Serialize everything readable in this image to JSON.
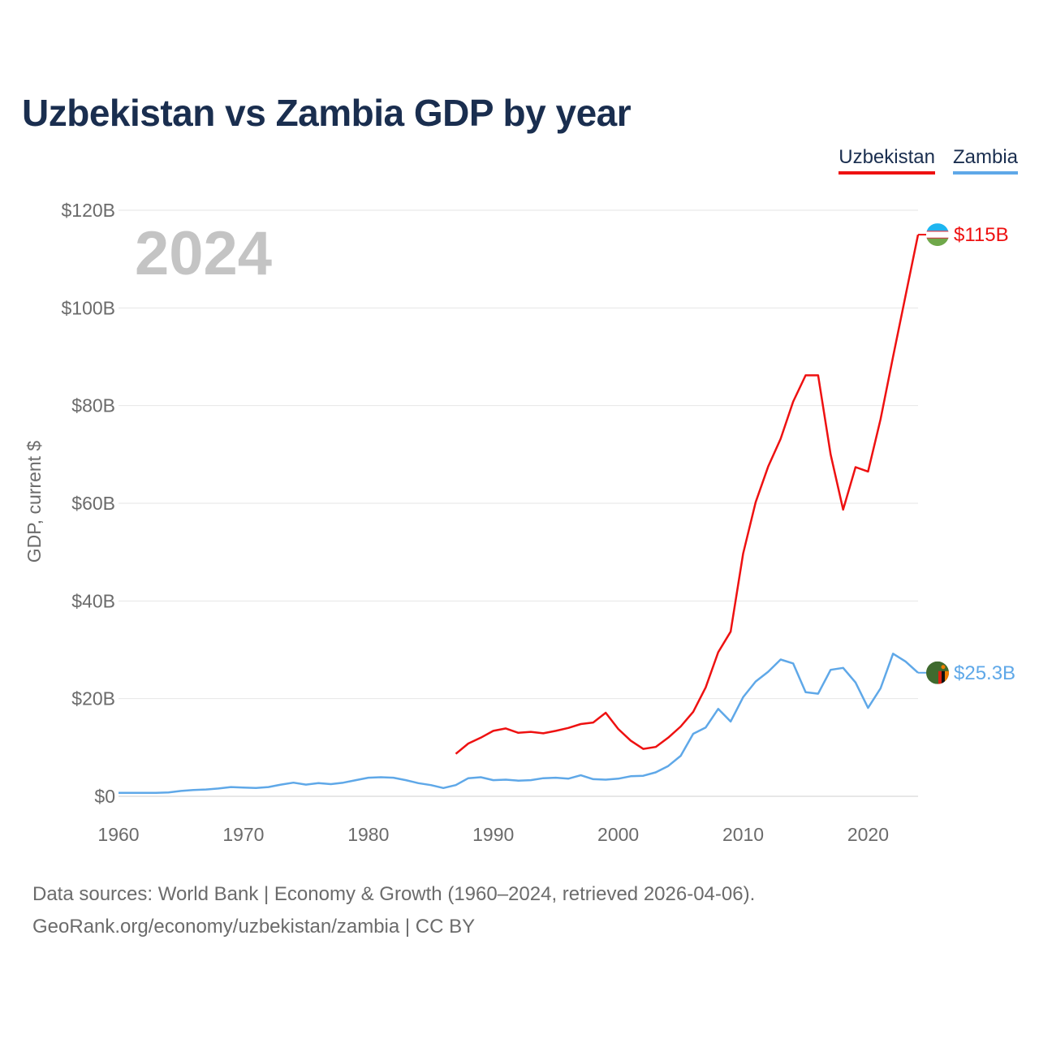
{
  "title": "Uzbekistan vs Zambia GDP by year",
  "year_watermark": "2024",
  "footer": {
    "line1": "Data sources: World Bank | Economy & Growth (1960–2024, retrieved 2026-04-06).",
    "line2": "GeoRank.org/economy/uzbekistan/zambia | CC BY"
  },
  "chart_data": {
    "type": "line",
    "title": "Uzbekistan vs Zambia GDP by year",
    "xlabel": "",
    "ylabel": "GDP, current $",
    "xlim": [
      1960,
      2024
    ],
    "ylim": [
      0,
      120
    ],
    "y_unit": "billion current US$",
    "x_ticks": [
      "1960",
      "1970",
      "1980",
      "1990",
      "2000",
      "2010",
      "2020"
    ],
    "y_ticks": [
      "$0",
      "$20B",
      "$40B",
      "$60B",
      "$80B",
      "$100B",
      "$120B"
    ],
    "grid": true,
    "legend_position": "top-right",
    "series": [
      {
        "name": "Uzbekistan",
        "color": "#ee1111",
        "end_label": "$115B",
        "flag_icon": "uzbekistan-flag-icon",
        "x": [
          1987,
          1988,
          1989,
          1990,
          1991,
          1992,
          1993,
          1994,
          1995,
          1996,
          1997,
          1998,
          1999,
          2000,
          2001,
          2002,
          2003,
          2004,
          2005,
          2006,
          2007,
          2008,
          2009,
          2010,
          2011,
          2012,
          2013,
          2014,
          2015,
          2016,
          2017,
          2018,
          2019,
          2020,
          2021,
          2022,
          2023,
          2024
        ],
        "values": [
          8.7,
          10.8,
          12.0,
          13.4,
          13.9,
          13.0,
          13.2,
          12.9,
          13.4,
          14.0,
          14.8,
          15.1,
          17.1,
          13.8,
          11.4,
          9.7,
          10.1,
          12.0,
          14.3,
          17.3,
          22.3,
          29.5,
          33.7,
          49.7,
          60.2,
          67.5,
          73.2,
          80.8,
          86.2,
          86.2,
          70.0,
          58.7,
          67.4,
          66.5,
          77.2,
          90.0,
          102.5,
          115.0
        ]
      },
      {
        "name": "Zambia",
        "color": "#5fa8e8",
        "end_label": "$25.3B",
        "flag_icon": "zambia-flag-icon",
        "x": [
          1960,
          1961,
          1962,
          1963,
          1964,
          1965,
          1966,
          1967,
          1968,
          1969,
          1970,
          1971,
          1972,
          1973,
          1974,
          1975,
          1976,
          1977,
          1978,
          1979,
          1980,
          1981,
          1982,
          1983,
          1984,
          1985,
          1986,
          1987,
          1988,
          1989,
          1990,
          1991,
          1992,
          1993,
          1994,
          1995,
          1996,
          1997,
          1998,
          1999,
          2000,
          2001,
          2002,
          2003,
          2004,
          2005,
          2006,
          2007,
          2008,
          2009,
          2010,
          2011,
          2012,
          2013,
          2014,
          2015,
          2016,
          2017,
          2018,
          2019,
          2020,
          2021,
          2022,
          2023,
          2024
        ],
        "values": [
          0.7,
          0.7,
          0.7,
          0.7,
          0.8,
          1.1,
          1.3,
          1.4,
          1.6,
          1.9,
          1.8,
          1.7,
          1.9,
          2.4,
          2.8,
          2.4,
          2.7,
          2.5,
          2.8,
          3.3,
          3.8,
          3.9,
          3.8,
          3.3,
          2.7,
          2.3,
          1.7,
          2.3,
          3.7,
          3.9,
          3.3,
          3.4,
          3.2,
          3.3,
          3.7,
          3.8,
          3.6,
          4.3,
          3.5,
          3.4,
          3.6,
          4.1,
          4.2,
          4.9,
          6.2,
          8.3,
          12.8,
          14.1,
          17.9,
          15.3,
          20.3,
          23.5,
          25.5,
          28.0,
          27.2,
          21.3,
          21.0,
          25.9,
          26.3,
          23.3,
          18.1,
          22.1,
          29.2,
          27.6,
          25.3
        ]
      }
    ]
  }
}
